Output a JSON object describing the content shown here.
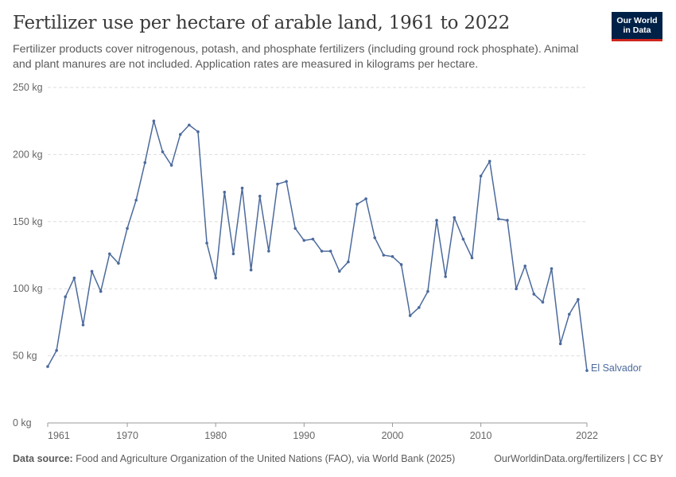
{
  "header": {
    "title": "Fertilizer use per hectare of arable land, 1961 to 2022",
    "subtitle": "Fertilizer products cover nitrogenous, potash, and phosphate fertilizers (including ground rock phosphate). Animal and plant manures are not included. Application rates are measured in kilograms per hectare."
  },
  "logo": {
    "line1": "Our World",
    "line2": "in Data"
  },
  "footer": {
    "source_label": "Data source:",
    "source_text": " Food and Agriculture Organization of the United Nations (FAO), via World Bank (2025)",
    "link": "OurWorldinData.org/fertilizers | CC BY"
  },
  "colors": {
    "series": "#4c6a9c",
    "grid": "#dddddd",
    "axis": "#999999",
    "logo_bg": "#002147",
    "logo_accent": "#ce261e"
  },
  "chart_data": {
    "type": "line",
    "title": "Fertilizer use per hectare of arable land, 1961 to 2022",
    "xlabel": "",
    "ylabel": "",
    "ylim": [
      0,
      250
    ],
    "xlim": [
      1961,
      2022
    ],
    "y_ticks": [
      0,
      50,
      100,
      150,
      200,
      250
    ],
    "y_tick_labels": [
      "0 kg",
      "50 kg",
      "100 kg",
      "150 kg",
      "200 kg",
      "250 kg"
    ],
    "x_ticks": [
      1961,
      1970,
      1980,
      1990,
      2000,
      2010,
      2022
    ],
    "x_tick_labels": [
      "1961",
      "1970",
      "1980",
      "1990",
      "2000",
      "2010",
      "2022"
    ],
    "grid": "horizontal dashed",
    "series": [
      {
        "name": "El Salvador",
        "x": [
          1961,
          1962,
          1963,
          1964,
          1965,
          1966,
          1967,
          1968,
          1969,
          1970,
          1971,
          1972,
          1973,
          1974,
          1975,
          1976,
          1977,
          1978,
          1979,
          1980,
          1981,
          1982,
          1983,
          1984,
          1985,
          1986,
          1987,
          1988,
          1989,
          1990,
          1991,
          1992,
          1993,
          1994,
          1995,
          1996,
          1997,
          1998,
          1999,
          2000,
          2001,
          2002,
          2003,
          2004,
          2005,
          2006,
          2007,
          2008,
          2009,
          2010,
          2011,
          2012,
          2013,
          2014,
          2015,
          2016,
          2017,
          2018,
          2019,
          2020,
          2021,
          2022
        ],
        "values": [
          42,
          54,
          94,
          108,
          73,
          113,
          98,
          126,
          119,
          145,
          166,
          194,
          225,
          202,
          192,
          215,
          222,
          217,
          134,
          108,
          172,
          126,
          175,
          114,
          169,
          128,
          178,
          180,
          145,
          136,
          137,
          128,
          128,
          113,
          120,
          163,
          167,
          138,
          125,
          124,
          118,
          80,
          86,
          98,
          151,
          109,
          153,
          137,
          123,
          184,
          195,
          152,
          151,
          100,
          117,
          96,
          90,
          115,
          59,
          81,
          92,
          39
        ]
      }
    ]
  }
}
